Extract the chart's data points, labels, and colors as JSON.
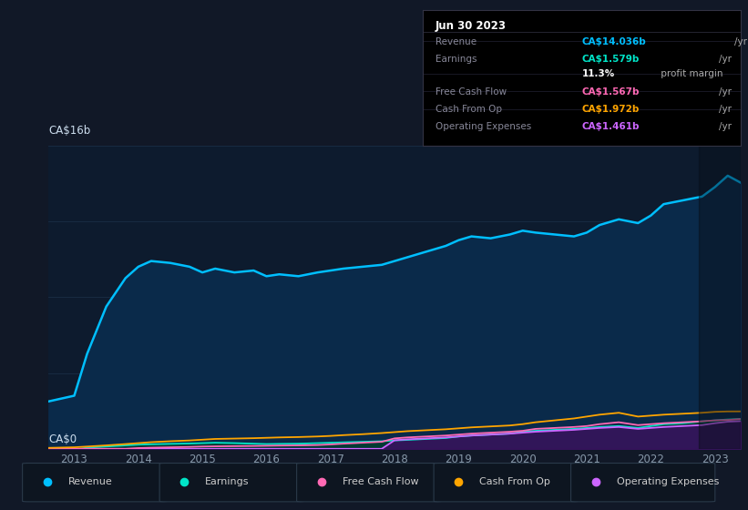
{
  "bg_color": "#111827",
  "plot_bg_color": "#0d1b2e",
  "grid_color": "#1a2e45",
  "title_box": {
    "date": "Jun 30 2023",
    "rows": [
      {
        "label": "Revenue",
        "value": "CA$14.036b",
        "value_color": "#00bfff",
        "extra": "/yr",
        "extra_color": "#aaaaaa",
        "sub": null
      },
      {
        "label": "Earnings",
        "value": "CA$1.579b",
        "value_color": "#00e5c8",
        "extra": "/yr",
        "extra_color": "#aaaaaa",
        "sub": "11.3% profit margin"
      },
      {
        "label": "Free Cash Flow",
        "value": "CA$1.567b",
        "value_color": "#ff69b4",
        "extra": "/yr",
        "extra_color": "#aaaaaa",
        "sub": null
      },
      {
        "label": "Cash From Op",
        "value": "CA$1.972b",
        "value_color": "#ffa500",
        "extra": "/yr",
        "extra_color": "#aaaaaa",
        "sub": null
      },
      {
        "label": "Operating Expenses",
        "value": "CA$1.461b",
        "value_color": "#cc66ff",
        "extra": "/yr",
        "extra_color": "#aaaaaa",
        "sub": null
      }
    ]
  },
  "ylabel_top": "CA$16b",
  "ylabel_bottom": "CA$0",
  "x_years": [
    2012.6,
    2013.0,
    2013.2,
    2013.5,
    2013.8,
    2014.0,
    2014.2,
    2014.5,
    2014.8,
    2015.0,
    2015.2,
    2015.5,
    2015.8,
    2016.0,
    2016.2,
    2016.5,
    2016.8,
    2017.0,
    2017.2,
    2017.5,
    2017.8,
    2018.0,
    2018.2,
    2018.5,
    2018.8,
    2019.0,
    2019.2,
    2019.5,
    2019.8,
    2020.0,
    2020.2,
    2020.5,
    2020.8,
    2021.0,
    2021.2,
    2021.5,
    2021.8,
    2022.0,
    2022.2,
    2022.5,
    2022.8,
    2023.0,
    2023.2,
    2023.4
  ],
  "revenue": [
    2.5,
    2.8,
    5.0,
    7.5,
    9.0,
    9.6,
    9.9,
    9.8,
    9.6,
    9.3,
    9.5,
    9.3,
    9.4,
    9.1,
    9.2,
    9.1,
    9.3,
    9.4,
    9.5,
    9.6,
    9.7,
    9.9,
    10.1,
    10.4,
    10.7,
    11.0,
    11.2,
    11.1,
    11.3,
    11.5,
    11.4,
    11.3,
    11.2,
    11.4,
    11.8,
    12.1,
    11.9,
    12.3,
    12.9,
    13.1,
    13.3,
    13.8,
    14.4,
    14.036
  ],
  "earnings": [
    0.0,
    -0.05,
    0.06,
    0.12,
    0.18,
    0.22,
    0.24,
    0.26,
    0.28,
    0.3,
    0.32,
    0.3,
    0.27,
    0.25,
    0.26,
    0.27,
    0.3,
    0.32,
    0.34,
    0.37,
    0.4,
    0.44,
    0.47,
    0.52,
    0.57,
    0.65,
    0.7,
    0.75,
    0.8,
    0.9,
    0.95,
    1.0,
    1.05,
    1.1,
    1.15,
    1.2,
    1.1,
    1.2,
    1.3,
    1.35,
    1.45,
    1.5,
    1.55,
    1.579
  ],
  "free_cash_flow": [
    0.0,
    0.0,
    0.0,
    0.0,
    0.0,
    0.04,
    0.06,
    0.08,
    0.1,
    0.12,
    0.13,
    0.14,
    0.15,
    0.16,
    0.17,
    0.18,
    0.2,
    0.23,
    0.27,
    0.32,
    0.37,
    0.55,
    0.6,
    0.65,
    0.7,
    0.75,
    0.8,
    0.85,
    0.9,
    0.95,
    1.05,
    1.1,
    1.15,
    1.2,
    1.3,
    1.4,
    1.25,
    1.3,
    1.35,
    1.4,
    1.45,
    1.5,
    1.52,
    1.567
  ],
  "cash_from_op": [
    0.05,
    0.08,
    0.12,
    0.18,
    0.25,
    0.3,
    0.35,
    0.4,
    0.44,
    0.48,
    0.52,
    0.54,
    0.56,
    0.58,
    0.6,
    0.62,
    0.65,
    0.68,
    0.72,
    0.77,
    0.83,
    0.88,
    0.93,
    0.98,
    1.03,
    1.08,
    1.13,
    1.18,
    1.23,
    1.3,
    1.4,
    1.5,
    1.6,
    1.7,
    1.8,
    1.9,
    1.7,
    1.75,
    1.8,
    1.85,
    1.9,
    1.95,
    1.97,
    1.972
  ],
  "operating_expenses": [
    0.0,
    0.0,
    0.0,
    0.0,
    0.0,
    0.0,
    0.0,
    0.0,
    0.0,
    0.0,
    0.0,
    0.0,
    0.0,
    0.0,
    0.0,
    0.0,
    0.0,
    0.0,
    0.0,
    0.0,
    0.0,
    0.45,
    0.5,
    0.55,
    0.6,
    0.65,
    0.7,
    0.75,
    0.8,
    0.85,
    0.9,
    0.95,
    1.0,
    1.05,
    1.1,
    1.15,
    1.05,
    1.1,
    1.15,
    1.2,
    1.25,
    1.35,
    1.43,
    1.461
  ],
  "revenue_color": "#00bfff",
  "earnings_color": "#00e5c8",
  "free_cash_flow_color": "#ff69b4",
  "cash_from_op_color": "#ffa500",
  "operating_expenses_color": "#cc66ff",
  "x_ticks": [
    2013,
    2014,
    2015,
    2016,
    2017,
    2018,
    2019,
    2020,
    2021,
    2022,
    2023
  ],
  "ylim": [
    0,
    16
  ],
  "legend_items": [
    {
      "label": "Revenue",
      "color": "#00bfff"
    },
    {
      "label": "Earnings",
      "color": "#00e5c8"
    },
    {
      "label": "Free Cash Flow",
      "color": "#ff69b4"
    },
    {
      "label": "Cash From Op",
      "color": "#ffa500"
    },
    {
      "label": "Operating Expenses",
      "color": "#cc66ff"
    }
  ]
}
